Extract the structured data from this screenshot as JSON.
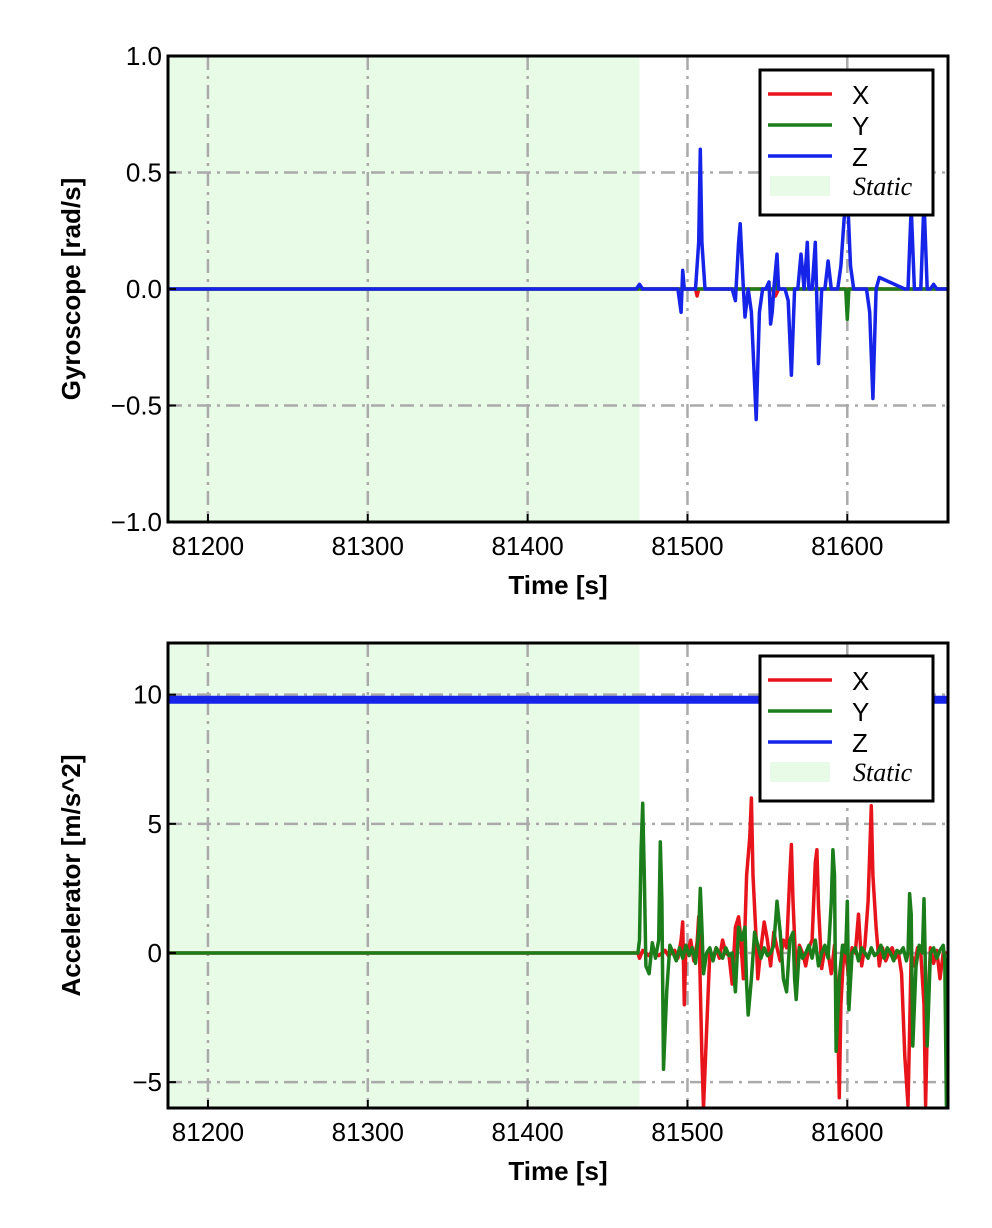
{
  "chart_data": [
    {
      "type": "line",
      "ylabel": "Gyroscope [rad/s]",
      "xlabel": "Time [s]",
      "xlim": [
        81175,
        81663
      ],
      "ylim": [
        -1.0,
        1.0
      ],
      "xticks": [
        81200,
        81300,
        81400,
        81500,
        81600
      ],
      "xtick_labels": [
        "81200",
        "81300",
        "81400",
        "81500",
        "81600"
      ],
      "yticks": [
        -1.0,
        -0.5,
        0.0,
        0.5,
        1.0
      ],
      "ytick_labels": [
        "−1.0",
        "−0.5",
        "0.0",
        "0.5",
        "1.0"
      ],
      "grid": true,
      "legend_position": "top-right",
      "static_region": {
        "label": "Static",
        "x_range": [
          81175,
          81470
        ],
        "color": "#e8fbe6"
      },
      "series": [
        {
          "name": "X",
          "color": "#e8141b",
          "x": [
            81175,
            81469,
            81505,
            81506,
            81507,
            81508,
            81553,
            81555,
            81557,
            81663
          ],
          "y": [
            0.0,
            0.0,
            0.0,
            -0.03,
            0.0,
            0.0,
            0.0,
            -0.03,
            0.0,
            0.0
          ]
        },
        {
          "name": "Y",
          "color": "#1b7e1b",
          "x": [
            81175,
            81469,
            81555,
            81556,
            81557,
            81599,
            81600,
            81601,
            81663
          ],
          "y": [
            0.0,
            0.0,
            0.0,
            0.05,
            0.0,
            0.0,
            -0.13,
            0.0,
            0.0
          ]
        },
        {
          "name": "Z",
          "color": "#1524e8",
          "x": [
            81175,
            81468,
            81470,
            81472,
            81494,
            81496,
            81497,
            81498,
            81500,
            81505,
            81507,
            81508,
            81509,
            81511,
            81513,
            81528,
            81530,
            81532,
            81533,
            81535,
            81536,
            81538,
            81540,
            81543,
            81545,
            81547,
            81549,
            81551,
            81552,
            81553,
            81554,
            81556,
            81557,
            81559,
            81561,
            81563,
            81565,
            81567,
            81569,
            81571,
            81573,
            81575,
            81576,
            81578,
            81580,
            81582,
            81584,
            81586,
            81588,
            81590,
            81594,
            81596,
            81598,
            81600,
            81602,
            81604,
            81606,
            81612,
            81614,
            81616,
            81618,
            81620,
            81636,
            81638,
            81640,
            81642,
            81644,
            81646,
            81648,
            81650,
            81652,
            81654,
            81656,
            81663
          ],
          "y": [
            0.0,
            0.0,
            0.02,
            0.0,
            0.0,
            -0.1,
            0.08,
            0.0,
            0.0,
            0.0,
            0.2,
            0.6,
            0.2,
            0.0,
            0.0,
            0.0,
            -0.05,
            0.2,
            0.28,
            0.0,
            -0.12,
            0.0,
            -0.1,
            -0.56,
            -0.1,
            0.0,
            0.0,
            0.03,
            -0.15,
            -0.1,
            0.0,
            0.15,
            0.0,
            0.0,
            0.0,
            -0.05,
            -0.37,
            0.0,
            0.0,
            0.15,
            0.0,
            0.2,
            0.0,
            0.0,
            0.2,
            -0.32,
            0.0,
            0.0,
            0.12,
            0.0,
            0.0,
            0.1,
            0.3,
            0.42,
            0.1,
            0.0,
            0.0,
            0.0,
            -0.1,
            -0.47,
            0.0,
            0.05,
            0.0,
            0.0,
            0.35,
            0.0,
            0.0,
            0.0,
            0.38,
            0.0,
            0.0,
            0.02,
            0.0,
            0.0
          ]
        }
      ]
    },
    {
      "type": "line",
      "ylabel": "Accelerator [m/s^2]",
      "xlabel": "Time [s]",
      "xlim": [
        81175,
        81663
      ],
      "ylim": [
        -6.0,
        12.0
      ],
      "xticks": [
        81200,
        81300,
        81400,
        81500,
        81600
      ],
      "xtick_labels": [
        "81200",
        "81300",
        "81400",
        "81500",
        "81600"
      ],
      "yticks": [
        -5,
        0,
        5,
        10
      ],
      "ytick_labels": [
        "−5",
        "0",
        "5",
        "10"
      ],
      "grid": true,
      "legend_position": "top-right",
      "static_region": {
        "label": "Static",
        "x_range": [
          81175,
          81470
        ],
        "color": "#e8fbe6"
      },
      "series": [
        {
          "name": "X",
          "color": "#e8141b",
          "x": [
            81175,
            81469,
            81470,
            81472,
            81474,
            81476,
            81478,
            81480,
            81482,
            81484,
            81486,
            81488,
            81490,
            81492,
            81494,
            81496,
            81497,
            81498,
            81499,
            81500,
            81502,
            81504,
            81506,
            81507,
            81509,
            81510,
            81512,
            81514,
            81516,
            81518,
            81520,
            81522,
            81524,
            81526,
            81528,
            81530,
            81532,
            81533,
            81535,
            81537,
            81539,
            81540,
            81541,
            81543,
            81544,
            81546,
            81548,
            81550,
            81552,
            81554,
            81556,
            81558,
            81560,
            81562,
            81564,
            81565,
            81566,
            81568,
            81570,
            81572,
            81574,
            81576,
            81578,
            81580,
            81581,
            81582,
            81584,
            81586,
            81588,
            81590,
            81592,
            81594,
            81595,
            81596,
            81598,
            81600,
            81601,
            81603,
            81605,
            81607,
            81609,
            81611,
            81613,
            81615,
            81616,
            81618,
            81620,
            81622,
            81624,
            81626,
            81628,
            81630,
            81632,
            81634,
            81636,
            81638,
            81639,
            81640,
            81642,
            81644,
            81646,
            81648,
            81649,
            81650,
            81652,
            81654,
            81656,
            81658,
            81660,
            81663
          ],
          "y": [
            0.0,
            0.0,
            -0.2,
            0.1,
            0.0,
            -0.1,
            0.1,
            0.0,
            -0.1,
            0.0,
            0.1,
            -0.1,
            0.0,
            0.1,
            -0.2,
            0.5,
            1.2,
            -2.0,
            0.3,
            0.0,
            0.5,
            -0.3,
            0.4,
            1.4,
            -4.0,
            -6.0,
            -3.0,
            0.0,
            -0.2,
            0.2,
            -0.2,
            0.5,
            0.0,
            -0.1,
            -1.2,
            1.0,
            1.4,
            0.8,
            -1.0,
            3.0,
            4.5,
            6.0,
            3.0,
            0.5,
            -1.0,
            0.2,
            1.2,
            0.5,
            -0.5,
            0.8,
            0.2,
            -0.3,
            0.5,
            0.2,
            3.0,
            4.2,
            2.0,
            -0.8,
            0.3,
            0.0,
            -0.5,
            0.2,
            0.5,
            3.5,
            4.0,
            1.8,
            -0.6,
            0.2,
            0.0,
            -0.8,
            0.3,
            -2.5,
            -5.6,
            -2.0,
            0.3,
            -0.5,
            -1.0,
            0.2,
            0.0,
            1.5,
            -0.5,
            0.3,
            2.0,
            5.7,
            3.0,
            1.0,
            -0.5,
            0.2,
            -0.3,
            0.0,
            0.2,
            -0.2,
            0.0,
            -0.8,
            -4.0,
            -5.9,
            -3.0,
            0.0,
            -0.5,
            0.2,
            0.0,
            -2.0,
            -5.9,
            -3.0,
            0.2,
            -0.4,
            0.1,
            -1.0,
            0.0,
            0.0
          ]
        },
        {
          "name": "Y",
          "color": "#1b7e1b",
          "x": [
            81175,
            81469,
            81470,
            81471,
            81472,
            81473,
            81474,
            81476,
            81478,
            81480,
            81482,
            81483,
            81484,
            81485,
            81487,
            81489,
            81491,
            81493,
            81495,
            81497,
            81499,
            81501,
            81503,
            81505,
            81507,
            81508,
            81509,
            81510,
            81512,
            81514,
            81516,
            81518,
            81520,
            81522,
            81524,
            81526,
            81528,
            81530,
            81532,
            81534,
            81536,
            81537,
            81538,
            81540,
            81542,
            81544,
            81546,
            81548,
            81550,
            81552,
            81554,
            81556,
            81558,
            81560,
            81562,
            81564,
            81566,
            81567,
            81568,
            81570,
            81572,
            81574,
            81576,
            81578,
            81580,
            81582,
            81584,
            81586,
            81588,
            81590,
            81591,
            81592,
            81593,
            81595,
            81597,
            81599,
            81600,
            81601,
            81603,
            81605,
            81607,
            81609,
            81611,
            81613,
            81615,
            81617,
            81619,
            81621,
            81623,
            81625,
            81627,
            81629,
            81631,
            81633,
            81635,
            81637,
            81638,
            81639,
            81640,
            81641,
            81643,
            81645,
            81647,
            81648,
            81649,
            81650,
            81652,
            81654,
            81656,
            81658,
            81660,
            81661,
            81662,
            81663
          ],
          "y": [
            0.0,
            0.0,
            0.5,
            4.0,
            5.8,
            3.0,
            -0.5,
            -0.8,
            0.4,
            -0.2,
            0.5,
            4.3,
            2.0,
            -4.5,
            -1.5,
            0.3,
            0.0,
            -0.3,
            0.2,
            -0.2,
            0.3,
            -0.1,
            0.2,
            -0.4,
            0.8,
            2.5,
            1.0,
            -0.8,
            0.0,
            0.2,
            -0.3,
            0.2,
            0.0,
            -0.2,
            0.2,
            -0.1,
            0.0,
            -1.5,
            1.0,
            0.5,
            1.0,
            -1.2,
            -2.4,
            -1.0,
            0.8,
            0.3,
            -0.2,
            0.2,
            -0.1,
            0.0,
            0.3,
            2.0,
            0.8,
            -1.0,
            -1.5,
            0.5,
            0.8,
            -1.0,
            -1.8,
            0.2,
            -0.2,
            0.0,
            0.3,
            -0.2,
            0.5,
            -0.5,
            0.0,
            0.3,
            -0.2,
            2.0,
            4.0,
            3.0,
            -3.8,
            -1.0,
            0.3,
            0.0,
            2.0,
            -2.2,
            0.0,
            0.2,
            -0.3,
            0.2,
            0.0,
            -0.2,
            0.2,
            -0.1,
            0.0,
            0.3,
            -0.2,
            0.2,
            0.0,
            -0.3,
            0.1,
            0.0,
            0.2,
            -0.3,
            0.0,
            2.3,
            1.5,
            -3.6,
            -0.5,
            0.3,
            0.0,
            2.1,
            -1.0,
            -3.6,
            0.0,
            0.2,
            -0.2,
            0.1,
            0.3,
            -0.3,
            -5.9,
            0.0
          ]
        },
        {
          "name": "Z",
          "color": "#1524e8",
          "x": [
            81175,
            81663
          ],
          "y": [
            9.8,
            9.8
          ]
        }
      ]
    }
  ]
}
